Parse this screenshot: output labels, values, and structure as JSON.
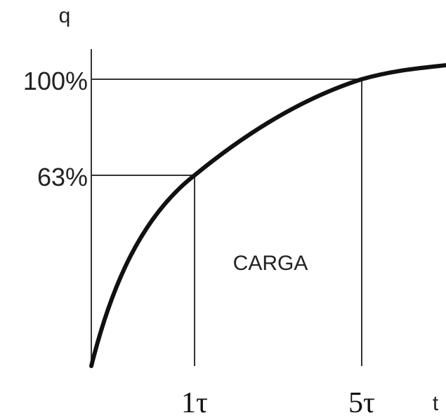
{
  "axes": {
    "y_label": "q",
    "x_label": "t"
  },
  "levels": [
    "100%",
    "63%"
  ],
  "times": [
    "1τ",
    "5τ"
  ],
  "region_label": "CARGA"
}
